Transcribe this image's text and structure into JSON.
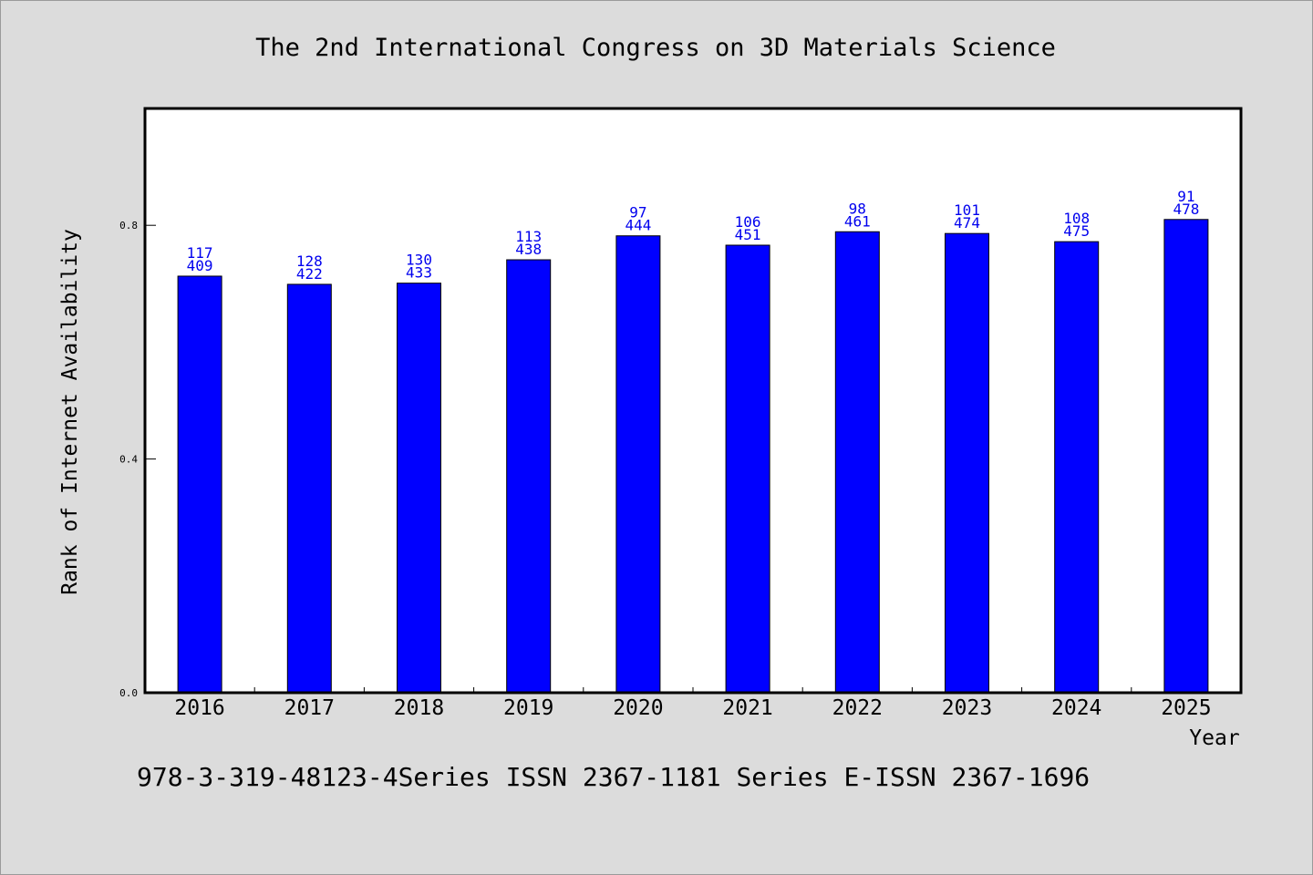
{
  "chart_data": {
    "type": "bar",
    "title": "The 2nd International Congress on 3D Materials Science",
    "xlabel": "Year",
    "ylabel": "Rank of Internet Availability",
    "footer": "978-3-319-48123-4Series ISSN 2367-1181 Series E-ISSN 2367-1696",
    "categories": [
      "2016",
      "2017",
      "2018",
      "2019",
      "2020",
      "2021",
      "2022",
      "2023",
      "2024",
      "2025"
    ],
    "values": [
      0.713,
      0.699,
      0.701,
      0.741,
      0.782,
      0.766,
      0.789,
      0.786,
      0.772,
      0.81
    ],
    "label_top": [
      "117",
      "128",
      "130",
      "113",
      "97",
      "106",
      "98",
      "101",
      "108",
      "91"
    ],
    "label_bottom": [
      "409",
      "422",
      "433",
      "438",
      "444",
      "451",
      "461",
      "474",
      "475",
      "478"
    ],
    "yticks": [
      0.0,
      0.4,
      0.8
    ],
    "ytick_labels": [
      "0.0",
      "0.4",
      "0.8"
    ],
    "ylim": [
      0,
      1.0
    ],
    "grid": false,
    "legend": "none",
    "colors": {
      "bar": "#0000ff",
      "bar_edge": "#000000",
      "data_label": "#0000ee",
      "background": "#dcdcdc",
      "plot_bg": "#ffffff"
    }
  }
}
